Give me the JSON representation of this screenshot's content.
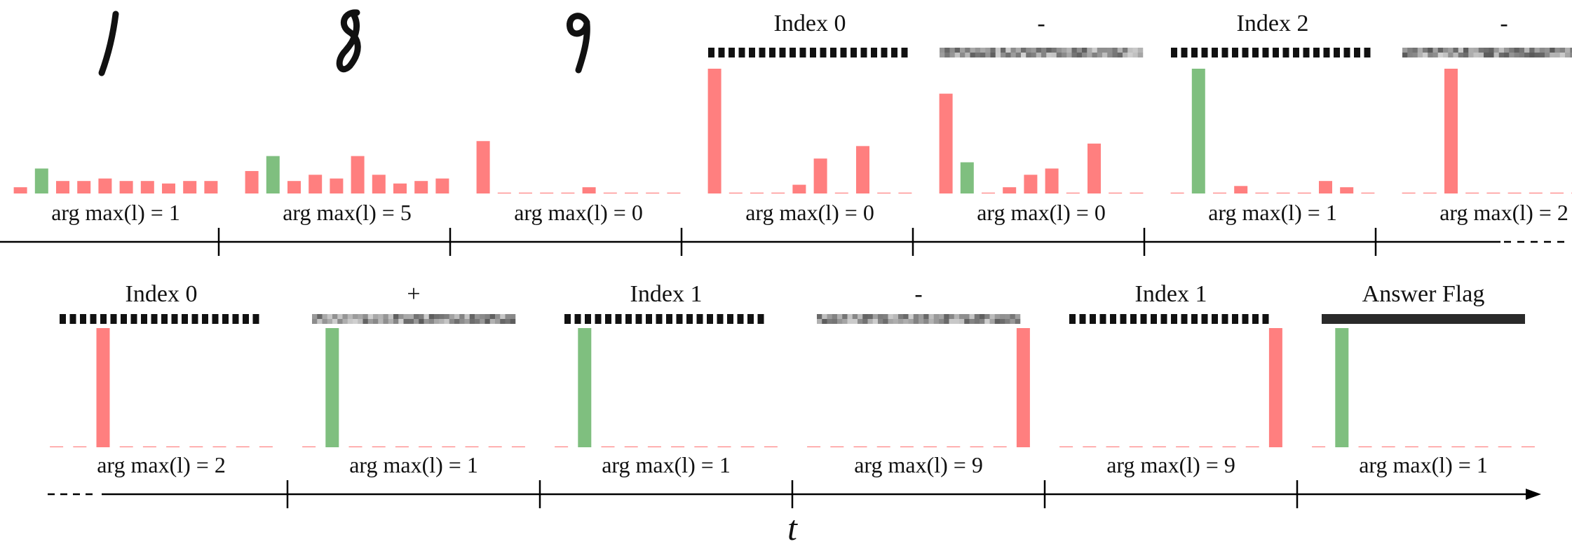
{
  "colors": {
    "red": "#ff7f7f",
    "green": "#7fbf7f",
    "axis": "#000000",
    "token": "#111111"
  },
  "time_axis_label": "t",
  "rows": [
    {
      "steps": [
        {
          "token_type": "image",
          "digit": "1",
          "header": "",
          "output": "arg max(l) = 1",
          "bars": [
            {
              "v": 0.05,
              "c": "red"
            },
            {
              "v": 0.2,
              "c": "green"
            },
            {
              "v": 0.1,
              "c": "red"
            },
            {
              "v": 0.1,
              "c": "red"
            },
            {
              "v": 0.12,
              "c": "red"
            },
            {
              "v": 0.1,
              "c": "red"
            },
            {
              "v": 0.1,
              "c": "red"
            },
            {
              "v": 0.08,
              "c": "red"
            },
            {
              "v": 0.1,
              "c": "red"
            },
            {
              "v": 0.1,
              "c": "red"
            }
          ]
        },
        {
          "token_type": "image",
          "digit": "8",
          "header": "",
          "output": "arg max(l) = 5",
          "bars": [
            {
              "v": 0.18,
              "c": "red"
            },
            {
              "v": 0.3,
              "c": "green"
            },
            {
              "v": 0.1,
              "c": "red"
            },
            {
              "v": 0.15,
              "c": "red"
            },
            {
              "v": 0.12,
              "c": "red"
            },
            {
              "v": 0.3,
              "c": "red"
            },
            {
              "v": 0.15,
              "c": "red"
            },
            {
              "v": 0.08,
              "c": "red"
            },
            {
              "v": 0.1,
              "c": "red"
            },
            {
              "v": 0.12,
              "c": "red"
            }
          ]
        },
        {
          "token_type": "image",
          "digit": "9",
          "header": "",
          "output": "arg max(l) = 0",
          "bars": [
            {
              "v": 0.42,
              "c": "red"
            },
            {
              "v": 0,
              "c": "red"
            },
            {
              "v": 0,
              "c": "red"
            },
            {
              "v": 0,
              "c": "red"
            },
            {
              "v": 0,
              "c": "red"
            },
            {
              "v": 0.05,
              "c": "red"
            },
            {
              "v": 0,
              "c": "red"
            },
            {
              "v": 0,
              "c": "red"
            },
            {
              "v": 0,
              "c": "red"
            },
            {
              "v": 0,
              "c": "red"
            }
          ]
        },
        {
          "token_type": "index",
          "header": "Index 0",
          "output": "arg max(l) = 0",
          "bars": [
            {
              "v": 1.0,
              "c": "red"
            },
            {
              "v": 0,
              "c": "red"
            },
            {
              "v": 0,
              "c": "red"
            },
            {
              "v": 0,
              "c": "red"
            },
            {
              "v": 0.07,
              "c": "red"
            },
            {
              "v": 0.28,
              "c": "red"
            },
            {
              "v": 0,
              "c": "red"
            },
            {
              "v": 0.38,
              "c": "red"
            },
            {
              "v": 0,
              "c": "red"
            },
            {
              "v": 0,
              "c": "red"
            }
          ]
        },
        {
          "token_type": "operator",
          "header": "-",
          "output": "arg max(l) = 0",
          "bars": [
            {
              "v": 0.8,
              "c": "red"
            },
            {
              "v": 0.25,
              "c": "green"
            },
            {
              "v": 0,
              "c": "red"
            },
            {
              "v": 0.05,
              "c": "red"
            },
            {
              "v": 0.15,
              "c": "red"
            },
            {
              "v": 0.2,
              "c": "red"
            },
            {
              "v": 0,
              "c": "red"
            },
            {
              "v": 0.4,
              "c": "red"
            },
            {
              "v": 0,
              "c": "red"
            },
            {
              "v": 0,
              "c": "red"
            }
          ]
        },
        {
          "token_type": "index",
          "header": "Index 2",
          "output": "arg max(l) = 1",
          "bars": [
            {
              "v": 0,
              "c": "red"
            },
            {
              "v": 1.0,
              "c": "green"
            },
            {
              "v": 0,
              "c": "red"
            },
            {
              "v": 0.06,
              "c": "red"
            },
            {
              "v": 0,
              "c": "red"
            },
            {
              "v": 0,
              "c": "red"
            },
            {
              "v": 0,
              "c": "red"
            },
            {
              "v": 0.1,
              "c": "red"
            },
            {
              "v": 0.05,
              "c": "red"
            },
            {
              "v": 0,
              "c": "red"
            }
          ]
        },
        {
          "token_type": "operator",
          "header": "-",
          "output": "arg max(l) = 2",
          "bars": [
            {
              "v": 0,
              "c": "red"
            },
            {
              "v": 0,
              "c": "red"
            },
            {
              "v": 1.0,
              "c": "red"
            },
            {
              "v": 0,
              "c": "red"
            },
            {
              "v": 0,
              "c": "red"
            },
            {
              "v": 0,
              "c": "red"
            },
            {
              "v": 0,
              "c": "red"
            },
            {
              "v": 0,
              "c": "red"
            },
            {
              "v": 0,
              "c": "red"
            },
            {
              "v": 0,
              "c": "red"
            }
          ]
        }
      ]
    },
    {
      "steps": [
        {
          "token_type": "index",
          "header": "Index 0",
          "output": "arg max(l) = 2",
          "bars": [
            {
              "v": 0,
              "c": "red"
            },
            {
              "v": 0,
              "c": "red"
            },
            {
              "v": 1.0,
              "c": "red"
            },
            {
              "v": 0,
              "c": "red"
            },
            {
              "v": 0,
              "c": "red"
            },
            {
              "v": 0,
              "c": "red"
            },
            {
              "v": 0,
              "c": "red"
            },
            {
              "v": 0,
              "c": "red"
            },
            {
              "v": 0,
              "c": "red"
            },
            {
              "v": 0,
              "c": "red"
            }
          ]
        },
        {
          "token_type": "operator",
          "header": "+",
          "output": "arg max(l) = 1",
          "bars": [
            {
              "v": 0,
              "c": "red"
            },
            {
              "v": 1.0,
              "c": "green"
            },
            {
              "v": 0,
              "c": "red"
            },
            {
              "v": 0,
              "c": "red"
            },
            {
              "v": 0,
              "c": "red"
            },
            {
              "v": 0,
              "c": "red"
            },
            {
              "v": 0,
              "c": "red"
            },
            {
              "v": 0,
              "c": "red"
            },
            {
              "v": 0,
              "c": "red"
            },
            {
              "v": 0,
              "c": "red"
            }
          ]
        },
        {
          "token_type": "index",
          "header": "Index 1",
          "output": "arg max(l) = 1",
          "bars": [
            {
              "v": 0,
              "c": "red"
            },
            {
              "v": 1.0,
              "c": "green"
            },
            {
              "v": 0,
              "c": "red"
            },
            {
              "v": 0,
              "c": "red"
            },
            {
              "v": 0,
              "c": "red"
            },
            {
              "v": 0,
              "c": "red"
            },
            {
              "v": 0,
              "c": "red"
            },
            {
              "v": 0,
              "c": "red"
            },
            {
              "v": 0,
              "c": "red"
            },
            {
              "v": 0,
              "c": "red"
            }
          ]
        },
        {
          "token_type": "operator",
          "header": "-",
          "output": "arg max(l) = 9",
          "bars": [
            {
              "v": 0,
              "c": "red"
            },
            {
              "v": 0,
              "c": "red"
            },
            {
              "v": 0,
              "c": "red"
            },
            {
              "v": 0,
              "c": "red"
            },
            {
              "v": 0,
              "c": "red"
            },
            {
              "v": 0,
              "c": "red"
            },
            {
              "v": 0,
              "c": "red"
            },
            {
              "v": 0,
              "c": "red"
            },
            {
              "v": 0,
              "c": "red"
            },
            {
              "v": 1.0,
              "c": "red"
            }
          ]
        },
        {
          "token_type": "index",
          "header": "Index 1",
          "output": "arg max(l) = 9",
          "bars": [
            {
              "v": 0,
              "c": "red"
            },
            {
              "v": 0,
              "c": "red"
            },
            {
              "v": 0,
              "c": "red"
            },
            {
              "v": 0,
              "c": "red"
            },
            {
              "v": 0,
              "c": "red"
            },
            {
              "v": 0,
              "c": "red"
            },
            {
              "v": 0,
              "c": "red"
            },
            {
              "v": 0,
              "c": "red"
            },
            {
              "v": 0,
              "c": "red"
            },
            {
              "v": 1.0,
              "c": "red"
            }
          ]
        },
        {
          "token_type": "flag",
          "header": "Answer Flag",
          "output": "arg max(l) = 1",
          "bars": [
            {
              "v": 0,
              "c": "red"
            },
            {
              "v": 1.0,
              "c": "green"
            },
            {
              "v": 0,
              "c": "red"
            },
            {
              "v": 0,
              "c": "red"
            },
            {
              "v": 0,
              "c": "red"
            },
            {
              "v": 0,
              "c": "red"
            },
            {
              "v": 0,
              "c": "red"
            },
            {
              "v": 0,
              "c": "red"
            },
            {
              "v": 0,
              "c": "red"
            },
            {
              "v": 0,
              "c": "red"
            }
          ]
        }
      ]
    }
  ]
}
